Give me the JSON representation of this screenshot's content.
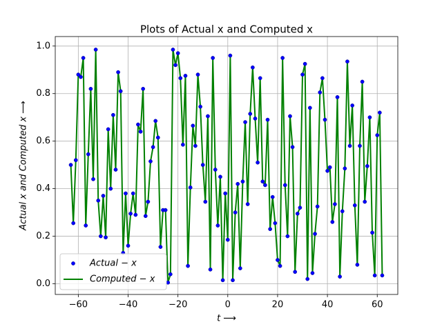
{
  "chart_data": {
    "type": "line",
    "title": "Plots of Actual x and Computed x",
    "xlabel": "t ⟶",
    "ylabel": "Actual x and Computed x ⟶",
    "x": [
      -63,
      -62,
      -61,
      -60,
      -59,
      -58,
      -57,
      -56,
      -55,
      -54,
      -53,
      -52,
      -51,
      -50,
      -49,
      -48,
      -47,
      -46,
      -45,
      -44,
      -43,
      -42,
      -41,
      -40,
      -39,
      -38,
      -37,
      -36,
      -35,
      -34,
      -33,
      -32,
      -31,
      -30,
      -29,
      -28,
      -27,
      -26,
      -25,
      -24,
      -23,
      -22,
      -21,
      -20,
      -19,
      -18,
      -17,
      -16,
      -15,
      -14,
      -13,
      -12,
      -11,
      -10,
      -9,
      -8,
      -7,
      -6,
      -5,
      -4,
      -3,
      -2,
      -1,
      0,
      1,
      2,
      3,
      4,
      5,
      6,
      7,
      8,
      9,
      10,
      11,
      12,
      13,
      14,
      15,
      16,
      17,
      18,
      19,
      20,
      21,
      22,
      23,
      24,
      25,
      26,
      27,
      28,
      29,
      30,
      31,
      32,
      33,
      34,
      35,
      36,
      37,
      38,
      39,
      40,
      41,
      42,
      43,
      44,
      45,
      46,
      47,
      48,
      49,
      50,
      51,
      52,
      53,
      54,
      55,
      56,
      57,
      58,
      59,
      60,
      61,
      62
    ],
    "series": [
      {
        "name": "Actual − x",
        "color": "#0000ff",
        "style": "markers",
        "values": [
          0.5,
          0.255,
          0.52,
          0.88,
          0.87,
          0.95,
          0.245,
          0.545,
          0.82,
          0.44,
          0.985,
          0.35,
          0.2,
          0.37,
          0.195,
          0.65,
          0.4,
          0.71,
          0.48,
          0.89,
          0.81,
          0.13,
          0.38,
          0.16,
          0.295,
          0.38,
          0.29,
          0.67,
          0.64,
          0.82,
          0.285,
          0.345,
          0.515,
          0.575,
          0.685,
          0.615,
          0.155,
          0.31,
          0.31,
          0.005,
          0.04,
          0.985,
          0.92,
          0.97,
          0.865,
          0.585,
          0.875,
          0.075,
          0.405,
          0.665,
          0.58,
          0.88,
          0.745,
          0.5,
          0.345,
          0.705,
          0.06,
          0.95,
          0.48,
          0.245,
          0.45,
          0.015,
          0.38,
          0.185,
          0.96,
          0.015,
          0.3,
          0.42,
          0.065,
          0.43,
          0.68,
          0.335,
          0.715,
          0.91,
          0.695,
          0.51,
          0.865,
          0.43,
          0.415,
          0.69,
          0.23,
          0.365,
          0.255,
          0.1,
          0.075,
          0.95,
          0.415,
          0.2,
          0.705,
          0.575,
          0.05,
          0.295,
          0.32,
          0.88,
          0.925,
          0.02,
          0.74,
          0.045,
          0.21,
          0.325,
          0.805,
          0.865,
          0.69,
          0.475,
          0.49,
          0.26,
          0.335,
          0.785,
          0.03,
          0.305,
          0.485,
          0.935,
          0.58,
          0.75,
          0.33,
          0.08,
          0.58,
          0.85,
          0.345,
          0.495,
          0.7,
          0.215,
          0.035,
          0.625,
          0.72,
          0.035
        ]
      },
      {
        "name": "Computed − x",
        "color": "#008000",
        "style": "line",
        "values": [
          0.5,
          0.255,
          0.52,
          0.88,
          0.87,
          0.95,
          0.245,
          0.545,
          0.82,
          0.44,
          0.985,
          0.35,
          0.2,
          0.37,
          0.195,
          0.65,
          0.4,
          0.71,
          0.48,
          0.89,
          0.81,
          0.13,
          0.38,
          0.16,
          0.295,
          0.38,
          0.29,
          0.67,
          0.64,
          0.82,
          0.285,
          0.345,
          0.515,
          0.575,
          0.685,
          0.615,
          0.155,
          0.31,
          0.31,
          0.005,
          0.04,
          0.985,
          0.92,
          0.97,
          0.865,
          0.585,
          0.875,
          0.075,
          0.405,
          0.665,
          0.58,
          0.88,
          0.745,
          0.5,
          0.345,
          0.705,
          0.06,
          0.95,
          0.48,
          0.245,
          0.45,
          0.015,
          0.38,
          0.185,
          0.96,
          0.015,
          0.3,
          0.42,
          0.065,
          0.43,
          0.68,
          0.335,
          0.715,
          0.91,
          0.695,
          0.51,
          0.865,
          0.43,
          0.415,
          0.69,
          0.23,
          0.365,
          0.255,
          0.1,
          0.075,
          0.95,
          0.415,
          0.2,
          0.705,
          0.575,
          0.05,
          0.295,
          0.32,
          0.88,
          0.925,
          0.02,
          0.74,
          0.045,
          0.21,
          0.325,
          0.805,
          0.865,
          0.69,
          0.475,
          0.49,
          0.26,
          0.335,
          0.785,
          0.03,
          0.305,
          0.485,
          0.935,
          0.58,
          0.75,
          0.33,
          0.08,
          0.58,
          0.85,
          0.345,
          0.495,
          0.7,
          0.215,
          0.035,
          0.625,
          0.72,
          0.035
        ]
      }
    ],
    "xlim": [
      -69.25,
      68.25
    ],
    "ylim": [
      -0.045,
      1.04
    ],
    "xticks": [
      {
        "value": -60,
        "label": "−60"
      },
      {
        "value": -40,
        "label": "−40"
      },
      {
        "value": -20,
        "label": "−20"
      },
      0,
      20,
      40,
      60
    ],
    "yticks": [
      {
        "value": 0,
        "label": "0.0"
      },
      {
        "value": 0.2,
        "label": "0.2"
      },
      {
        "value": 0.4,
        "label": "0.4"
      },
      {
        "value": 0.6,
        "label": "0.6"
      },
      {
        "value": 0.8,
        "label": "0.8"
      },
      {
        "value": 1,
        "label": "1.0"
      }
    ],
    "grid": true,
    "legend": "lower left"
  }
}
